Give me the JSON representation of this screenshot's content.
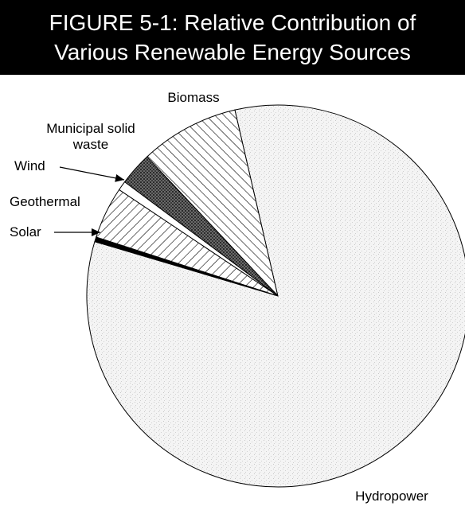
{
  "figure": {
    "title_line1": "FIGURE 5-1: Relative Contribution of",
    "title_line2": "Various Renewable Energy Sources"
  },
  "chart_data": {
    "type": "pie",
    "title": "FIGURE 5-1: Relative Contribution of Various Renewable Energy Sources",
    "slices": [
      {
        "label": "Biomass",
        "value": 8.4,
        "pattern": "diagonal-hatch"
      },
      {
        "label": "Municipal solid waste",
        "value": 2.8,
        "pattern": "crosshatch-dark"
      },
      {
        "label": "Wind",
        "value": 0.8,
        "pattern": "white"
      },
      {
        "label": "Geothermal",
        "value": 4.4,
        "pattern": "diagonal-hatch-reverse"
      },
      {
        "label": "Solar",
        "value": 0.4,
        "pattern": "black"
      },
      {
        "label": "Hydropower",
        "value": 83.2,
        "pattern": "light-stipple"
      }
    ],
    "colors": {
      "background": "#ffffff",
      "title_bar": "#000000",
      "title_text": "#ffffff",
      "stroke": "#000000"
    }
  }
}
